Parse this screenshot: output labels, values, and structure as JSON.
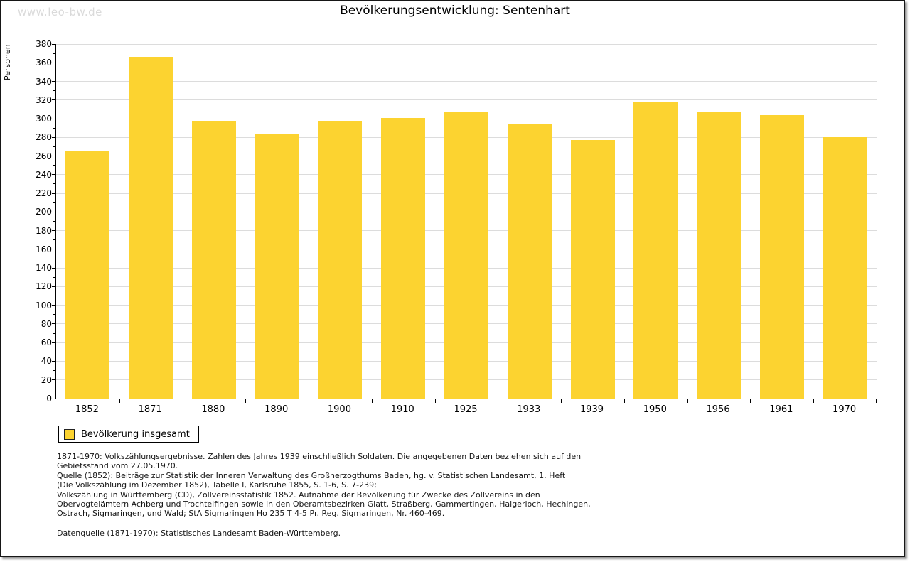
{
  "watermark": "www.leo-bw.de",
  "chart_data": {
    "type": "bar",
    "title": "Bevölkerungsentwicklung: Sentenhart",
    "xlabel": "",
    "ylabel": "Personen",
    "categories": [
      "1852",
      "1871",
      "1880",
      "1890",
      "1900",
      "1910",
      "1925",
      "1933",
      "1939",
      "1950",
      "1956",
      "1961",
      "1970"
    ],
    "series": [
      {
        "name": "Bevölkerung insgesamt",
        "values": [
          266,
          366,
          298,
          283,
          297,
          301,
          307,
          295,
          277,
          318,
          307,
          304,
          280
        ]
      }
    ],
    "ylim": [
      0,
      380
    ],
    "yticks": [
      0,
      20,
      40,
      60,
      80,
      100,
      120,
      140,
      160,
      180,
      200,
      220,
      240,
      260,
      280,
      300,
      320,
      340,
      360,
      380
    ],
    "ytick_minor_step": 10,
    "grid": true,
    "legend_position": "bottom-left",
    "bar_color": "#fcd330",
    "grid_color": "#dcdcdc",
    "axis_color": "#000000"
  },
  "legend": {
    "label": "Bevölkerung insgesamt"
  },
  "footnotes": {
    "lines": [
      "1871-1970: Volkszählungsergebnisse. Zahlen des Jahres 1939 einschließlich Soldaten. Die angegebenen Daten beziehen sich auf den",
      "Gebietsstand vom 27.05.1970.",
      "Quelle (1852): Beiträge zur Statistik der Inneren Verwaltung des Großherzogthums Baden, hg. v. Statistischen Landesamt, 1. Heft",
      "(Die Volkszählung im Dezember 1852), Tabelle I, Karlsruhe 1855, S. 1-6, S. 7-239;",
      "Volkszählung in Württemberg (CD), Zollvereinsstatistik 1852. Aufnahme der Bevölkerung für Zwecke des Zollvereins in den",
      "Obervogteiämtern Achberg und Trochtelfingen sowie in den Oberamtsbezirken Glatt, Straßberg, Gammertingen, Haigerloch, Hechingen,",
      "Ostrach, Sigmaringen, und Wald; StA Sigmaringen Ho 235 T 4-5 Pr. Reg. Sigmaringen, Nr. 460-469."
    ],
    "datasource": "Datenquelle (1871-1970): Statistisches Landesamt Baden-Württemberg."
  }
}
